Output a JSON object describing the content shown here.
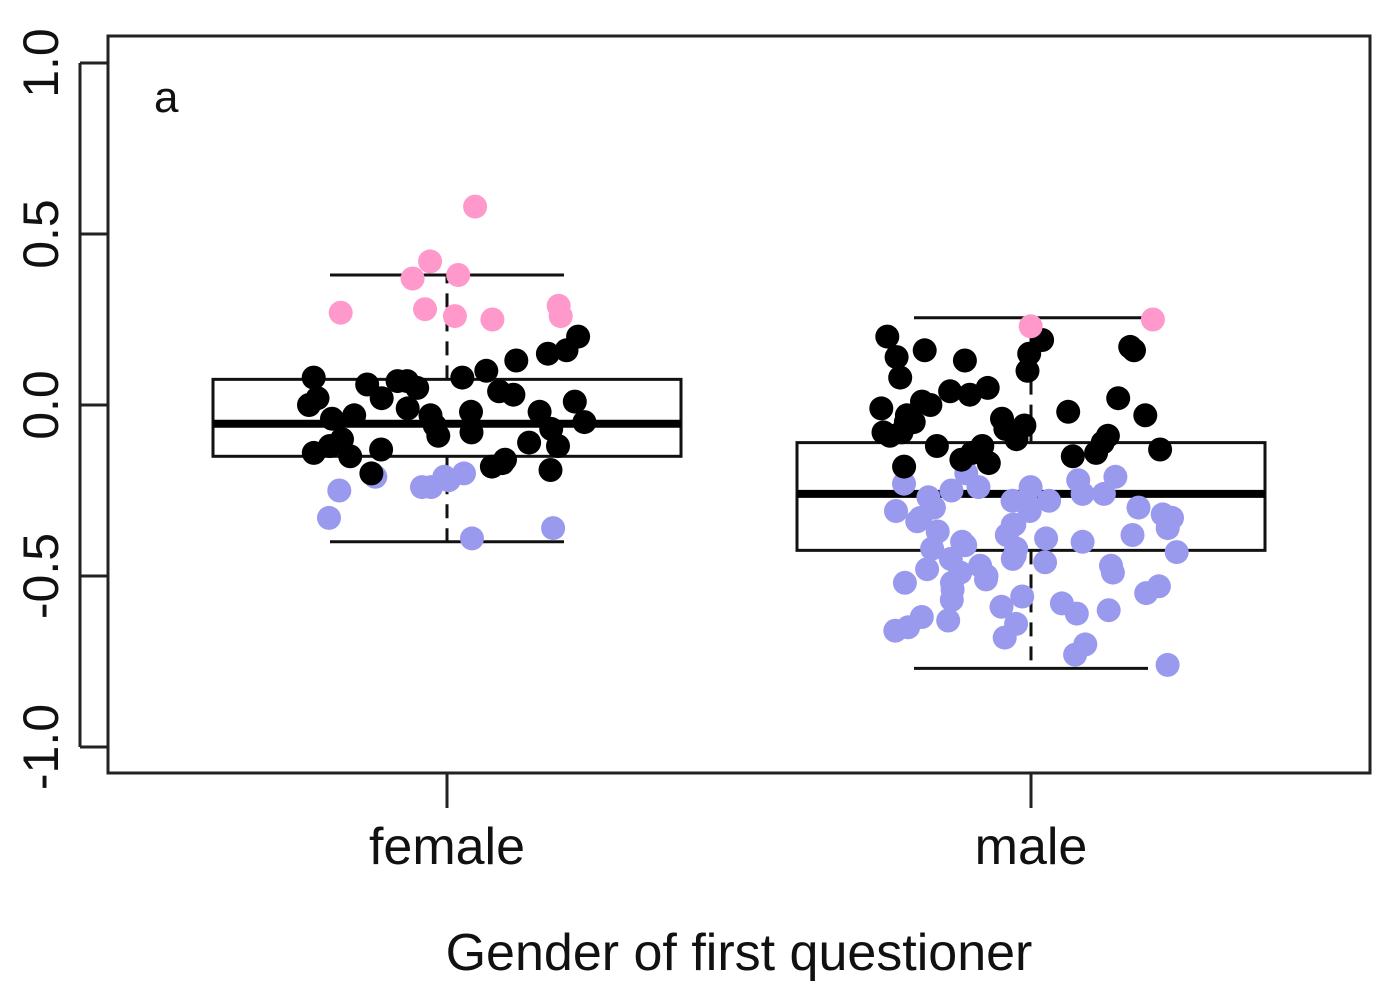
{
  "chart_data": {
    "type": "box+scatter",
    "panel_label": "a",
    "xlabel": "Gender of first questioner",
    "ylabel": "",
    "ylim": [
      -1.08,
      1.08
    ],
    "yticks": [
      -1.0,
      -0.5,
      0.0,
      0.5,
      1.0
    ],
    "ytick_labels": [
      "-1.0",
      "-0.5",
      "0.0",
      "0.5",
      "1.0"
    ],
    "categories": [
      "female",
      "male"
    ],
    "grid": false,
    "legend": "none",
    "colors": {
      "positive": "#ff99cc",
      "neutral": "#000000",
      "negative": "#9999ee",
      "box": "#000000"
    },
    "boxes": [
      {
        "category": "female",
        "whisker_low": -0.4,
        "q1": -0.15,
        "median": -0.055,
        "q3": 0.075,
        "whisker_high": 0.38
      },
      {
        "category": "male",
        "whisker_low": -0.77,
        "q1": -0.425,
        "median": -0.26,
        "q3": -0.11,
        "whisker_high": 0.255
      }
    ],
    "points": [
      {
        "category": "female",
        "group": "positive",
        "values": [
          0.58,
          0.42,
          0.37,
          0.38,
          0.26,
          0.26,
          0.28,
          0.27,
          0.29,
          0.25
        ]
      },
      {
        "category": "female",
        "group": "neutral",
        "values": [
          0.2,
          0.16,
          0.15,
          0.13,
          0.1,
          0.08,
          0.08,
          0.07,
          0.07,
          0.06,
          0.05,
          0.04,
          0.03,
          0.02,
          0.01,
          0.0,
          -0.01,
          -0.02,
          -0.03,
          -0.04,
          -0.05,
          -0.06,
          -0.07,
          -0.08,
          -0.09,
          -0.1,
          -0.11,
          -0.12,
          -0.13,
          -0.14,
          -0.15,
          -0.16,
          -0.17,
          -0.18,
          -0.19,
          -0.2,
          -0.02,
          -0.03,
          0.02,
          -0.12
        ]
      },
      {
        "category": "female",
        "group": "negative",
        "values": [
          -0.21,
          -0.2,
          -0.25,
          -0.21,
          -0.24,
          -0.22,
          -0.33,
          -0.36,
          -0.39,
          -0.24
        ]
      },
      {
        "category": "male",
        "group": "positive",
        "values": [
          0.23,
          0.25
        ]
      },
      {
        "category": "male",
        "group": "neutral",
        "values": [
          0.2,
          0.19,
          0.17,
          0.16,
          0.16,
          0.15,
          0.14,
          0.13,
          0.1,
          0.08,
          0.05,
          0.04,
          0.03,
          0.02,
          0.01,
          0.0,
          -0.01,
          -0.02,
          -0.03,
          -0.04,
          -0.05,
          -0.06,
          -0.07,
          -0.08,
          -0.09,
          -0.1,
          -0.11,
          -0.12,
          -0.13,
          -0.14,
          -0.15,
          -0.16,
          -0.17,
          -0.18,
          -0.03,
          -0.05,
          -0.08,
          -0.12,
          -0.14,
          -0.09
        ]
      },
      {
        "category": "male",
        "group": "negative",
        "values": [
          -0.2,
          -0.21,
          -0.22,
          -0.23,
          -0.24,
          -0.25,
          -0.26,
          -0.27,
          -0.28,
          -0.29,
          -0.3,
          -0.31,
          -0.32,
          -0.33,
          -0.34,
          -0.35,
          -0.36,
          -0.37,
          -0.38,
          -0.39,
          -0.4,
          -0.41,
          -0.42,
          -0.43,
          -0.44,
          -0.45,
          -0.46,
          -0.47,
          -0.48,
          -0.49,
          -0.5,
          -0.51,
          -0.52,
          -0.53,
          -0.54,
          -0.55,
          -0.56,
          -0.57,
          -0.58,
          -0.59,
          -0.6,
          -0.61,
          -0.62,
          -0.63,
          -0.64,
          -0.65,
          -0.66,
          -0.68,
          -0.7,
          -0.73,
          -0.76,
          -0.24,
          -0.28,
          -0.31,
          -0.35,
          -0.38,
          -0.42,
          -0.45,
          -0.49,
          -0.52,
          -0.26,
          -0.33,
          -0.4,
          -0.47,
          -0.3
        ]
      }
    ]
  }
}
